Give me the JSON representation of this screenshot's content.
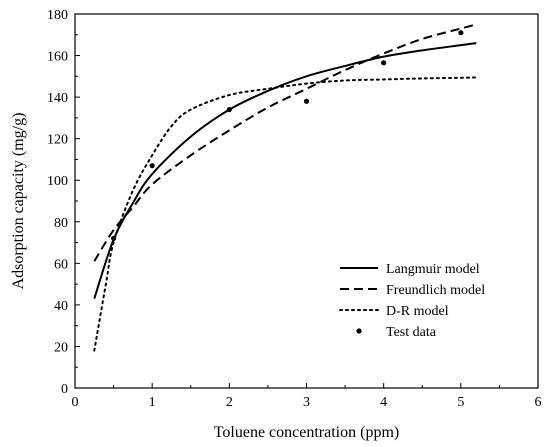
{
  "chart_data": {
    "type": "line",
    "title": "",
    "xlabel": "Toluene concentration (ppm)",
    "ylabel": "Adsorption capacity (mg/g)",
    "xlim": [
      0,
      6
    ],
    "ylim": [
      0,
      180
    ],
    "xticks": [
      0,
      1,
      2,
      3,
      4,
      5,
      6
    ],
    "yticks": [
      0,
      20,
      40,
      60,
      80,
      100,
      120,
      140,
      160,
      180
    ],
    "grid": false,
    "legend_position": "bottom-right",
    "series": [
      {
        "name": "Langmuir model",
        "style": "solid",
        "x": [
          0.25,
          0.5,
          0.75,
          1.0,
          1.5,
          2.0,
          2.5,
          3.0,
          3.5,
          4.0,
          4.5,
          5.0,
          5.2
        ],
        "y": [
          43,
          71.5,
          89,
          103,
          121,
          134,
          143,
          150,
          155,
          159.5,
          162.5,
          165,
          166
        ]
      },
      {
        "name": "Freundlich model",
        "style": "dashed",
        "x": [
          0.25,
          0.5,
          0.75,
          1.0,
          1.5,
          2.0,
          2.5,
          3.0,
          3.5,
          4.0,
          4.5,
          5.0,
          5.2
        ],
        "y": [
          61,
          76,
          87,
          98,
          112,
          124,
          135,
          144,
          153,
          161,
          168,
          173,
          175
        ]
      },
      {
        "name": "D-R model",
        "style": "dotted",
        "x": [
          0.25,
          0.4,
          0.5,
          0.75,
          1.0,
          1.25,
          1.5,
          2.0,
          2.5,
          3.0,
          3.5,
          4.0,
          4.5,
          5.0,
          5.2
        ],
        "y": [
          18,
          50,
          70,
          95,
          112,
          126,
          134,
          141,
          144,
          146.5,
          148,
          148.5,
          149,
          149.3,
          149.5
        ]
      },
      {
        "name": "Test data",
        "style": "markers",
        "x": [
          0.5,
          1.0,
          2.0,
          3.0,
          4.0,
          5.0
        ],
        "y": [
          72,
          107,
          134,
          138,
          156.5,
          171
        ]
      }
    ]
  }
}
